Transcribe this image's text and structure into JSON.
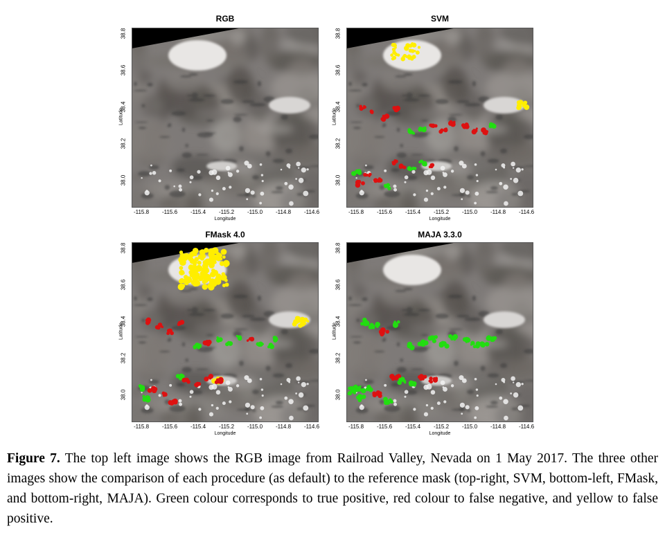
{
  "figure": {
    "panels": [
      {
        "title": "RGB",
        "mask": "none"
      },
      {
        "title": "SVM",
        "mask": "svm"
      },
      {
        "title": "FMask 4.0",
        "mask": "fmask"
      },
      {
        "title": "MAJA 3.3.0",
        "mask": "maja"
      }
    ],
    "xlabel": "Longitude",
    "ylabel": "Latitude",
    "x_ticks": [
      "-115.8",
      "-115.6",
      "-115.4",
      "-115.2",
      "-115.0",
      "-114.8",
      "-114.6"
    ],
    "y_ticks": [
      "38.8",
      "38.6",
      "38.4",
      "38.2",
      "38.0"
    ],
    "colors": {
      "true_positive": "#22dd11",
      "false_negative": "#dd1111",
      "false_positive": "#ffee00"
    }
  },
  "caption": {
    "label": "Figure 7.",
    "text": " The top left image shows the RGB image from Railroad Valley, Nevada on 1 May 2017. The three other images show the comparison of each procedure (as default) to the reference mask (top-right, SVM, bottom-left, FMask, and bottom-right, MAJA). Green colour corresponds to true positive, red colour to false negative, and yellow to false positive."
  }
}
